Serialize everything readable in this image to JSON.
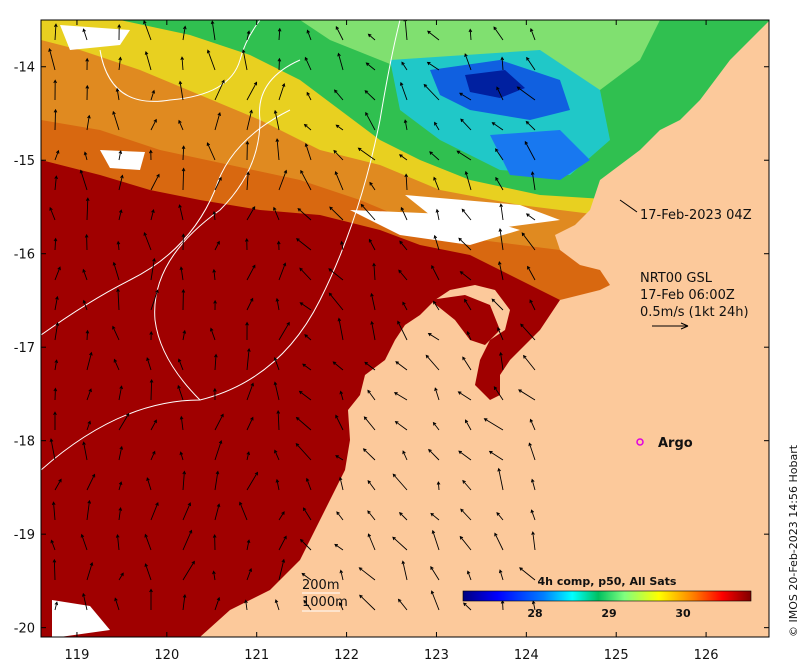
{
  "map": {
    "x_ticks": [
      "119",
      "120",
      "121",
      "122",
      "123",
      "124",
      "125",
      "126"
    ],
    "y_ticks": [
      "-14",
      "-15",
      "-16",
      "-17",
      "-18",
      "-19",
      "-20"
    ],
    "x_range": [
      118.6,
      126.7
    ],
    "y_range": [
      -20.1,
      -13.5
    ]
  },
  "annotations": {
    "timestamp_label": "17-Feb-2023 04Z",
    "current_model_line1": "NRT00 GSL",
    "current_model_line2": "17-Feb 06:00Z",
    "current_model_line3": "0.5m/s (1kt 24h)",
    "argo_label": "Argo",
    "depth_200": "200m",
    "depth_1000": "1000m"
  },
  "colorbar": {
    "title": "4h comp, p50, All Sats",
    "ticks": [
      "28",
      "29",
      "30"
    ],
    "colors": [
      "#00007f",
      "#0000ff",
      "#007fff",
      "#00ffff",
      "#00c060",
      "#7fff7f",
      "#ffff00",
      "#ff7f00",
      "#ff0000",
      "#7f0000"
    ]
  },
  "colors": {
    "land": "#fcc99b",
    "warm": "#a00000",
    "argo_marker": "#e000e0"
  },
  "credit": "© IMOS 20-Feb-2023 14:56 Hobart"
}
